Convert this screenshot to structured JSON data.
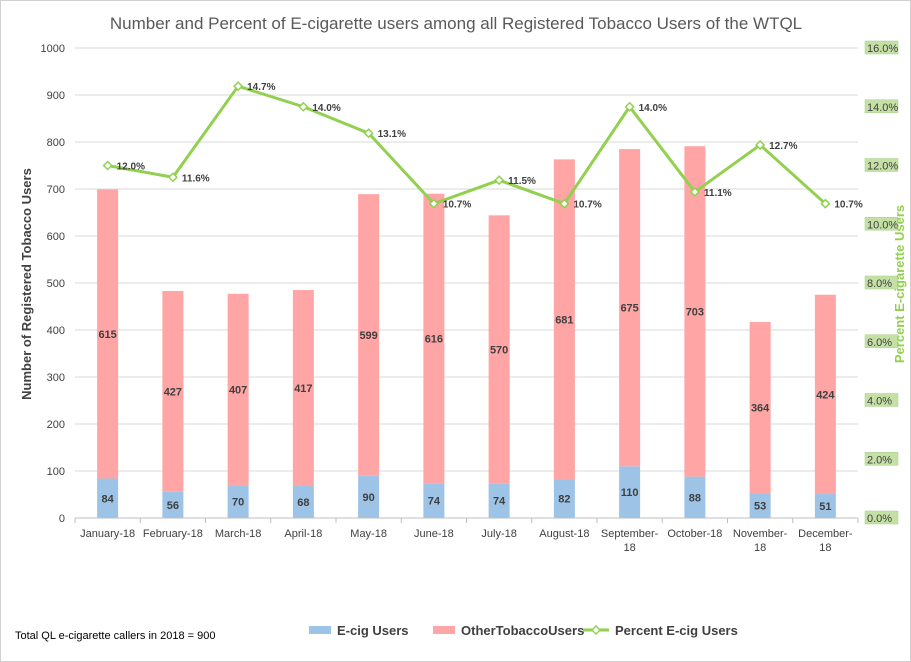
{
  "chart_data": {
    "type": "bar",
    "stacked": true,
    "title": "Number and Percent of E-cigarette users among all Registered Tobacco Users of the WTQL",
    "ylabel": "Number of Registered Tobacco Users",
    "y2label": "Percent E-cigarette Users",
    "ylim": [
      0,
      1000
    ],
    "yticks": [
      "0",
      "100",
      "200",
      "300",
      "400",
      "500",
      "600",
      "700",
      "800",
      "900",
      "1000"
    ],
    "y2lim": [
      0,
      16
    ],
    "y2ticks": [
      "0.0%",
      "2.0%",
      "4.0%",
      "6.0%",
      "8.0%",
      "10.0%",
      "12.0%",
      "14.0%",
      "16.0%"
    ],
    "categories": [
      [
        "January-18"
      ],
      [
        "February-18"
      ],
      [
        "March-18"
      ],
      [
        "April-18"
      ],
      [
        "May-18"
      ],
      [
        "June-18"
      ],
      [
        "July-18"
      ],
      [
        "August-18"
      ],
      [
        "September-",
        "18"
      ],
      [
        "October-18"
      ],
      [
        "November-",
        "18"
      ],
      [
        "December-",
        "18"
      ]
    ],
    "series": [
      {
        "name": "E-cig Users",
        "type": "bar",
        "color": "#9dc3e6",
        "values": [
          84,
          56,
          70,
          68,
          90,
          74,
          74,
          82,
          110,
          88,
          53,
          51
        ]
      },
      {
        "name": "OtherTobaccoUsers",
        "type": "bar",
        "color": "#ffa5a5",
        "values": [
          615,
          427,
          407,
          417,
          599,
          616,
          570,
          681,
          675,
          703,
          364,
          424
        ]
      },
      {
        "name": "Percent E-cig Users",
        "type": "line",
        "axis": "right",
        "color": "#92d050",
        "values": [
          12.0,
          11.6,
          14.7,
          14.0,
          13.1,
          10.7,
          11.5,
          10.7,
          14.0,
          11.1,
          12.7,
          10.7
        ],
        "labels": [
          "12.0%",
          "11.6%",
          "14.7%",
          "14.0%",
          "13.1%",
          "10.7%",
          "11.5%",
          "10.7%",
          "14.0%",
          "11.1%",
          "12.7%",
          "10.7%"
        ]
      }
    ],
    "grid": true,
    "legend": "bottom",
    "footnote": "Total QL e-cigarette callers in 2018 = 900"
  }
}
